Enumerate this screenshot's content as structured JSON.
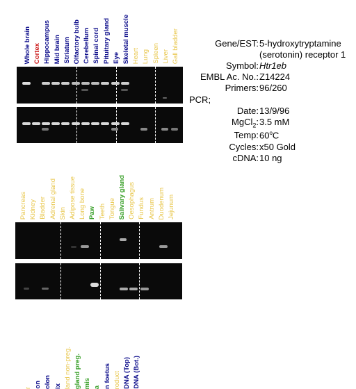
{
  "panel1": {
    "lanes": [
      {
        "label": "Whole brain",
        "color": "#0b0b8a"
      },
      {
        "label": "Cortex",
        "color": "#cc1a1a"
      },
      {
        "label": "Hippocampus",
        "color": "#0b0b8a"
      },
      {
        "label": "Mid brain",
        "color": "#0b0b8a"
      },
      {
        "label": "Striatum",
        "color": "#0b0b8a"
      },
      {
        "label": "Olfactory bulb",
        "color": "#0b0b8a"
      },
      {
        "label": "Cerebellum",
        "color": "#0b0b8a"
      },
      {
        "label": "Spinal cord",
        "color": "#0b0b8a"
      },
      {
        "label": "Pituitary gland",
        "color": "#0b0b8a"
      },
      {
        "label": "Eye",
        "color": "#0b0b8a"
      },
      {
        "label": "Skeletal muscle",
        "color": "#0b0b8a"
      },
      {
        "label": "Heart",
        "color": "#e8c64a"
      },
      {
        "label": "Lung",
        "color": "#e8c64a"
      },
      {
        "label": "Spleen",
        "color": "#e8c64a"
      },
      {
        "label": "Liver",
        "color": "#e8c64a"
      },
      {
        "label": "Gall bladder",
        "color": "#e8c64a"
      }
    ]
  },
  "panel2": {
    "lanes": [
      {
        "label": "Pancreas",
        "color": "#e8c64a"
      },
      {
        "label": "Kidney",
        "color": "#e8c64a"
      },
      {
        "label": "Bladder",
        "color": "#e8c64a"
      },
      {
        "label": "Adrenal gland",
        "color": "#e8c64a"
      },
      {
        "label": "Skin",
        "color": "#e8c64a"
      },
      {
        "label": "Adipose tissue",
        "color": "#e8c64a"
      },
      {
        "label": "Long bone",
        "color": "#e8c64a"
      },
      {
        "label": "Paw",
        "color": "#3aa02a"
      },
      {
        "label": "Teeth",
        "color": "#e8c64a"
      },
      {
        "label": "Tongue",
        "color": "#e8c64a"
      },
      {
        "label": "Salivary gland",
        "color": "#3aa02a"
      },
      {
        "label": "Oesophagus",
        "color": "#e8c64a"
      },
      {
        "label": "Fundus",
        "color": "#e8c64a"
      },
      {
        "label": "Antrum",
        "color": "#e8c64a"
      },
      {
        "label": "Duodenum",
        "color": "#e8c64a"
      },
      {
        "label": "Jejunum",
        "color": "#e8c64a"
      }
    ]
  },
  "panel3": {
    "lanes": [
      {
        "label": "r",
        "color": "#e8c64a"
      },
      {
        "label": "on",
        "color": "#0b0b8a"
      },
      {
        "label": "olon",
        "color": "#0b0b8a"
      },
      {
        "label": "ix",
        "color": "#0b0b8a"
      },
      {
        "label": "land non-preg.",
        "color": "#e8c64a"
      },
      {
        "label": "gland preg.",
        "color": "#3aa02a"
      },
      {
        "label": "mis",
        "color": "#3aa02a"
      },
      {
        "label": "a",
        "color": "#3aa02a"
      },
      {
        "label": "n foetus",
        "color": "#0b0b8a"
      },
      {
        "label": "roduct",
        "color": "#e8c64a"
      },
      {
        "label": "DNA (Top)",
        "color": "#0b0b8a"
      },
      {
        "label": "DNA (Bot.)",
        "color": "#0b0b8a"
      }
    ]
  },
  "info": {
    "gene_key": "Gene/EST:",
    "gene_val_1": "5-hydroxytryptamine",
    "gene_val_2": "(serotonin) receptor 1",
    "symbol_key": "Symbol:",
    "symbol_val": "Htr1eb",
    "embl_key": "EMBL Ac. No.:",
    "embl_val": "Z14224",
    "primers_key": "Primers:",
    "primers_val": "96/260",
    "pcr_label": "PCR;",
    "date_key": "Date:",
    "date_val": "13/9/96",
    "mgcl_key_main": "MgCl",
    "mgcl_key_sub": "2",
    "mgcl_key_colon": ":",
    "mgcl_val": "3.5 mM",
    "temp_key": "Temp:",
    "temp_val_num": "60",
    "temp_val_sup": "o",
    "temp_val_unit": "C",
    "cycles_key": "Cycles:",
    "cycles_val": "x50 Gold",
    "cdna_key": "cDNA:",
    "cdna_val": "10 ng"
  }
}
